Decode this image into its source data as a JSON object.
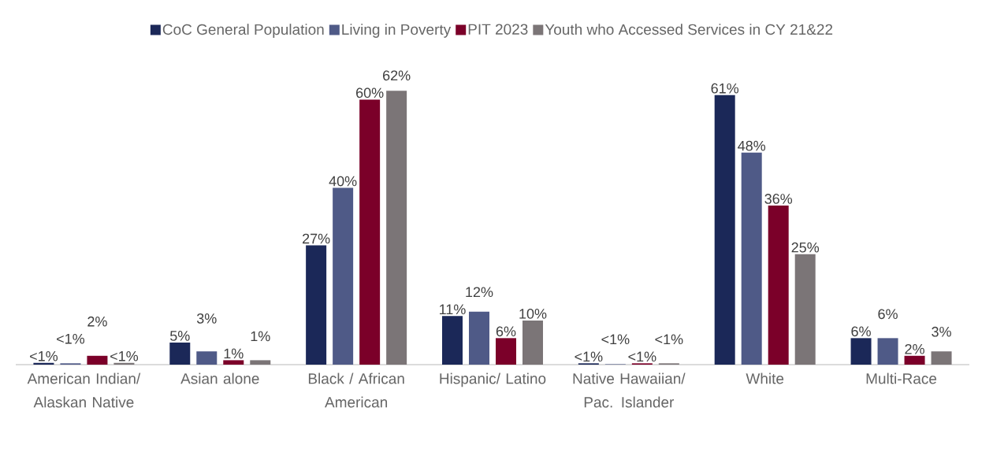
{
  "chart_data": {
    "type": "bar",
    "categories": [
      "American Indian/ Alaskan Native",
      "Asian alone",
      "Black / African American",
      "Hispanic/ Latino",
      "Native Hawaiian/ Pac. Islander",
      "White",
      "Multi-Race"
    ],
    "series": [
      {
        "name": "CoC General Population",
        "color": "#1b2858",
        "values": [
          0.4,
          5,
          27,
          11,
          0.3,
          61,
          6
        ],
        "value_labels": [
          "<1%",
          "5%",
          "27%",
          "11%",
          "<1%",
          "61%",
          "6%"
        ]
      },
      {
        "name": "Living in Poverty",
        "color": "#4f5a87",
        "values": [
          0.3,
          3,
          40,
          12,
          0.1,
          48,
          6
        ],
        "value_labels": [
          "<1%",
          "3%",
          "40%",
          "12%",
          "<1%",
          "48%",
          "6%"
        ]
      },
      {
        "name": "PIT 2023",
        "color": "#7b0029",
        "values": [
          2,
          1,
          60,
          6,
          0.3,
          36,
          2
        ],
        "value_labels": [
          "2%",
          "1%",
          "60%",
          "6%",
          "<1%",
          "36%",
          "2%"
        ]
      },
      {
        "name": "Youth who Accessed Services in CY 21&22",
        "color": "#7b7577",
        "values": [
          0.4,
          1,
          62,
          10,
          0.3,
          25,
          3
        ],
        "value_labels": [
          "<1%",
          "1%",
          "62%",
          "10%",
          "<1%",
          "25%",
          "3%"
        ]
      }
    ],
    "legend": "top"
  }
}
